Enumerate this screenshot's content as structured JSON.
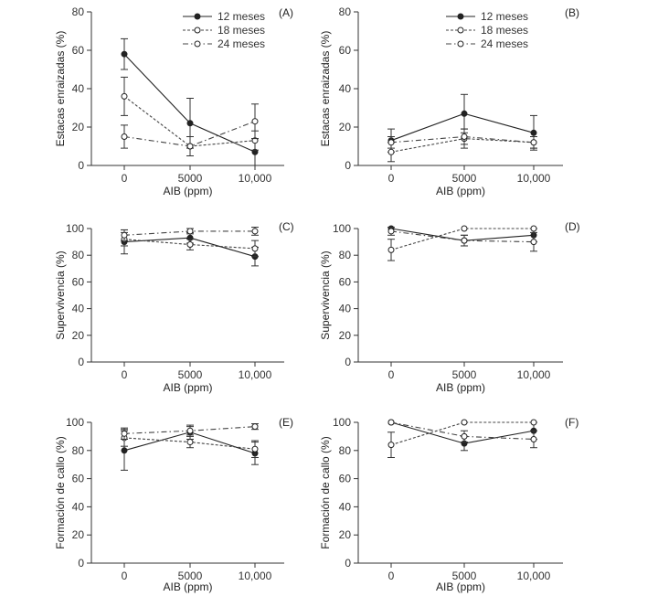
{
  "chart_data": [
    {
      "type": "line",
      "panel": "(A)",
      "categories": [
        "0",
        "5000",
        "10,000"
      ],
      "xlabel": "AIB (ppm)",
      "ylabel": "Estacas enraizadas (%)",
      "ylim": [
        0,
        80
      ],
      "yticks": [
        0,
        20,
        40,
        60,
        80
      ],
      "legend": [
        "12 meses",
        "18 meses",
        "24 meses"
      ],
      "series": [
        {
          "name": "12 meses",
          "values": [
            58,
            22,
            7
          ],
          "errors": [
            8,
            13,
            7
          ]
        },
        {
          "name": "18 meses",
          "values": [
            36,
            10,
            13
          ],
          "errors": [
            10,
            5,
            5
          ]
        },
        {
          "name": "24 meses",
          "values": [
            15,
            10,
            23
          ],
          "errors": [
            6,
            5,
            9
          ]
        }
      ]
    },
    {
      "type": "line",
      "panel": "(B)",
      "categories": [
        "0",
        "5000",
        "10,000"
      ],
      "xlabel": "AIB (ppm)",
      "ylabel": "Estacas enraizadas (%)",
      "ylim": [
        0,
        80
      ],
      "yticks": [
        0,
        20,
        40,
        60,
        80
      ],
      "legend": [
        "12 meses",
        "18 meses",
        "24 meses"
      ],
      "series": [
        {
          "name": "12 meses",
          "values": [
            13,
            27,
            17
          ],
          "errors": [
            6,
            10,
            9
          ]
        },
        {
          "name": "18 meses",
          "values": [
            7,
            14,
            12
          ],
          "errors": [
            5,
            5,
            3
          ]
        },
        {
          "name": "24 meses",
          "values": [
            12,
            15,
            12
          ],
          "errors": [
            3,
            4,
            3
          ]
        }
      ]
    },
    {
      "type": "line",
      "panel": "(C)",
      "categories": [
        "0",
        "5000",
        "10,000"
      ],
      "xlabel": "AIB (ppm)",
      "ylabel": "Supervivencia (%)",
      "ylim": [
        0,
        100
      ],
      "yticks": [
        0,
        20,
        40,
        60,
        80,
        100
      ],
      "series": [
        {
          "name": "12 meses",
          "values": [
            90,
            93,
            79
          ],
          "errors": [
            9,
            4,
            7
          ]
        },
        {
          "name": "18 meses",
          "values": [
            92,
            88,
            85
          ],
          "errors": [
            5,
            4,
            6
          ]
        },
        {
          "name": "24 meses",
          "values": [
            95,
            98,
            98
          ],
          "errors": [
            4,
            2,
            3
          ]
        }
      ]
    },
    {
      "type": "line",
      "panel": "(D)",
      "categories": [
        "0",
        "5000",
        "10,000"
      ],
      "xlabel": "AIB (ppm)",
      "ylabel": "Supervivencia (%)",
      "ylim": [
        0,
        100
      ],
      "yticks": [
        0,
        20,
        40,
        60,
        80,
        100
      ],
      "series": [
        {
          "name": "12 meses",
          "values": [
            100,
            91,
            95
          ],
          "errors": [
            0,
            4,
            5
          ]
        },
        {
          "name": "18 meses",
          "values": [
            84,
            100,
            100
          ],
          "errors": [
            8,
            0,
            0
          ]
        },
        {
          "name": "24 meses",
          "values": [
            98,
            91,
            90
          ],
          "errors": [
            3,
            4,
            7
          ]
        }
      ]
    },
    {
      "type": "line",
      "panel": "(E)",
      "categories": [
        "0",
        "5000",
        "10,000"
      ],
      "xlabel": "AIB (ppm)",
      "ylabel": "Formación de callo (%)",
      "ylim": [
        0,
        100
      ],
      "yticks": [
        0,
        20,
        40,
        60,
        80,
        100
      ],
      "series": [
        {
          "name": "12 meses",
          "values": [
            80,
            93,
            78
          ],
          "errors": [
            14,
            5,
            8
          ]
        },
        {
          "name": "18 meses",
          "values": [
            89,
            86,
            81
          ],
          "errors": [
            6,
            4,
            6
          ]
        },
        {
          "name": "24 meses",
          "values": [
            92,
            94,
            97
          ],
          "errors": [
            4,
            3,
            2
          ]
        }
      ]
    },
    {
      "type": "line",
      "panel": "(F)",
      "categories": [
        "0",
        "5000",
        "10,000"
      ],
      "xlabel": "AIB (ppm)",
      "ylabel": "Formación de callo (%)",
      "ylim": [
        0,
        100
      ],
      "yticks": [
        0,
        20,
        40,
        60,
        80,
        100
      ],
      "series": [
        {
          "name": "12 meses",
          "values": [
            100,
            85,
            94
          ],
          "errors": [
            0,
            5,
            6
          ]
        },
        {
          "name": "18 meses",
          "values": [
            84,
            100,
            100
          ],
          "errors": [
            9,
            0,
            0
          ]
        },
        {
          "name": "24 meses",
          "values": [
            100,
            90,
            88
          ],
          "errors": [
            0,
            4,
            6
          ]
        }
      ]
    }
  ]
}
